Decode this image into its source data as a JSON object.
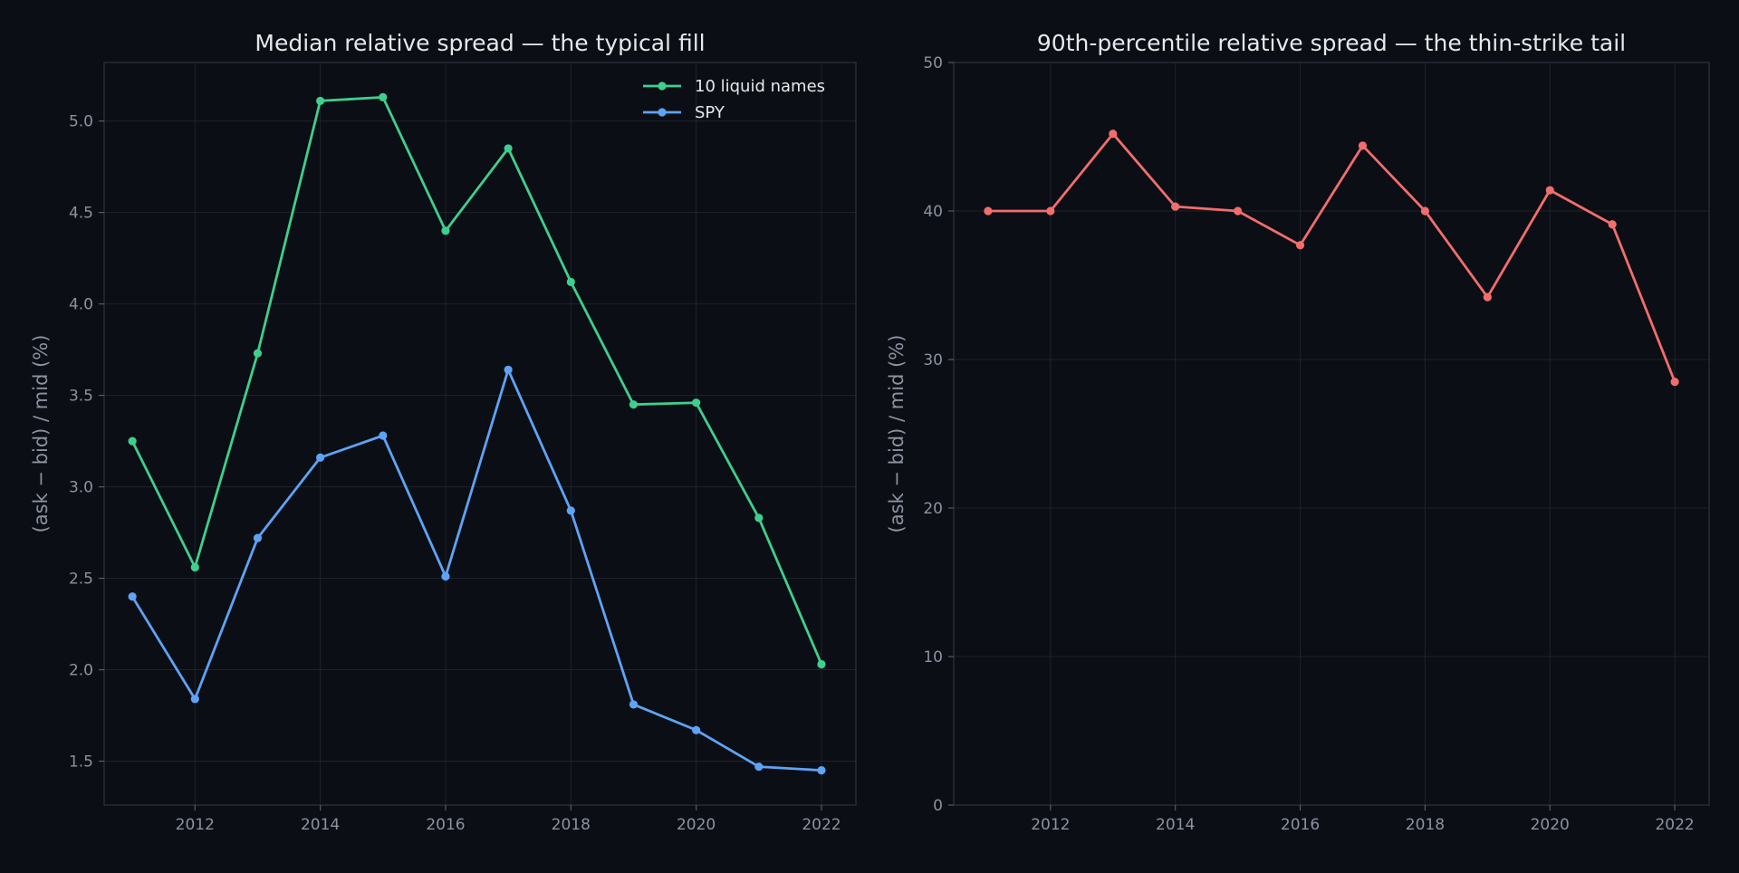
{
  "chart_data": [
    {
      "type": "line",
      "title": "Median relative spread — the typical fill",
      "xlabel": "",
      "ylabel": "(ask − bid) / mid (%)",
      "x": [
        2011,
        2012,
        2013,
        2014,
        2015,
        2016,
        2017,
        2018,
        2019,
        2020,
        2021,
        2022
      ],
      "xlim": [
        2010.55,
        2022.55
      ],
      "ylim": [
        1.26,
        5.32
      ],
      "x_ticks": [
        2012,
        2014,
        2016,
        2018,
        2020,
        2022
      ],
      "y_ticks": [
        1.5,
        2.0,
        2.5,
        3.0,
        3.5,
        4.0,
        4.5,
        5.0
      ],
      "y_tick_labels": [
        "1.5",
        "2.0",
        "2.5",
        "3.0",
        "3.5",
        "4.0",
        "4.5",
        "5.0"
      ],
      "grid": true,
      "legend_position": "top-right",
      "series": [
        {
          "name": "10 liquid names",
          "color": "#3ecf8e",
          "values": [
            3.25,
            2.56,
            3.73,
            5.11,
            5.13,
            4.4,
            4.85,
            4.12,
            3.45,
            3.46,
            2.83,
            2.03
          ]
        },
        {
          "name": "SPY",
          "color": "#5ea3f5",
          "values": [
            2.4,
            1.84,
            2.72,
            3.16,
            3.28,
            2.51,
            3.64,
            2.87,
            1.81,
            1.67,
            1.47,
            1.45
          ]
        }
      ]
    },
    {
      "type": "line",
      "title": "90th-percentile relative spread — the thin-strike tail",
      "xlabel": "",
      "ylabel": "(ask − bid) / mid (%)",
      "x": [
        2011,
        2012,
        2013,
        2014,
        2015,
        2016,
        2017,
        2018,
        2019,
        2020,
        2021,
        2022
      ],
      "xlim": [
        2010.45,
        2022.55
      ],
      "ylim": [
        0,
        50
      ],
      "x_ticks": [
        2012,
        2014,
        2016,
        2018,
        2020,
        2022
      ],
      "y_ticks": [
        0,
        10,
        20,
        30,
        40,
        50
      ],
      "y_tick_labels": [
        "0",
        "10",
        "20",
        "30",
        "40",
        "50"
      ],
      "grid": true,
      "series": [
        {
          "name": "",
          "color": "#f26d6d",
          "values": [
            40.0,
            40.0,
            45.2,
            40.3,
            40.0,
            37.7,
            44.4,
            40.0,
            34.2,
            41.4,
            39.1,
            28.5
          ]
        }
      ]
    }
  ]
}
